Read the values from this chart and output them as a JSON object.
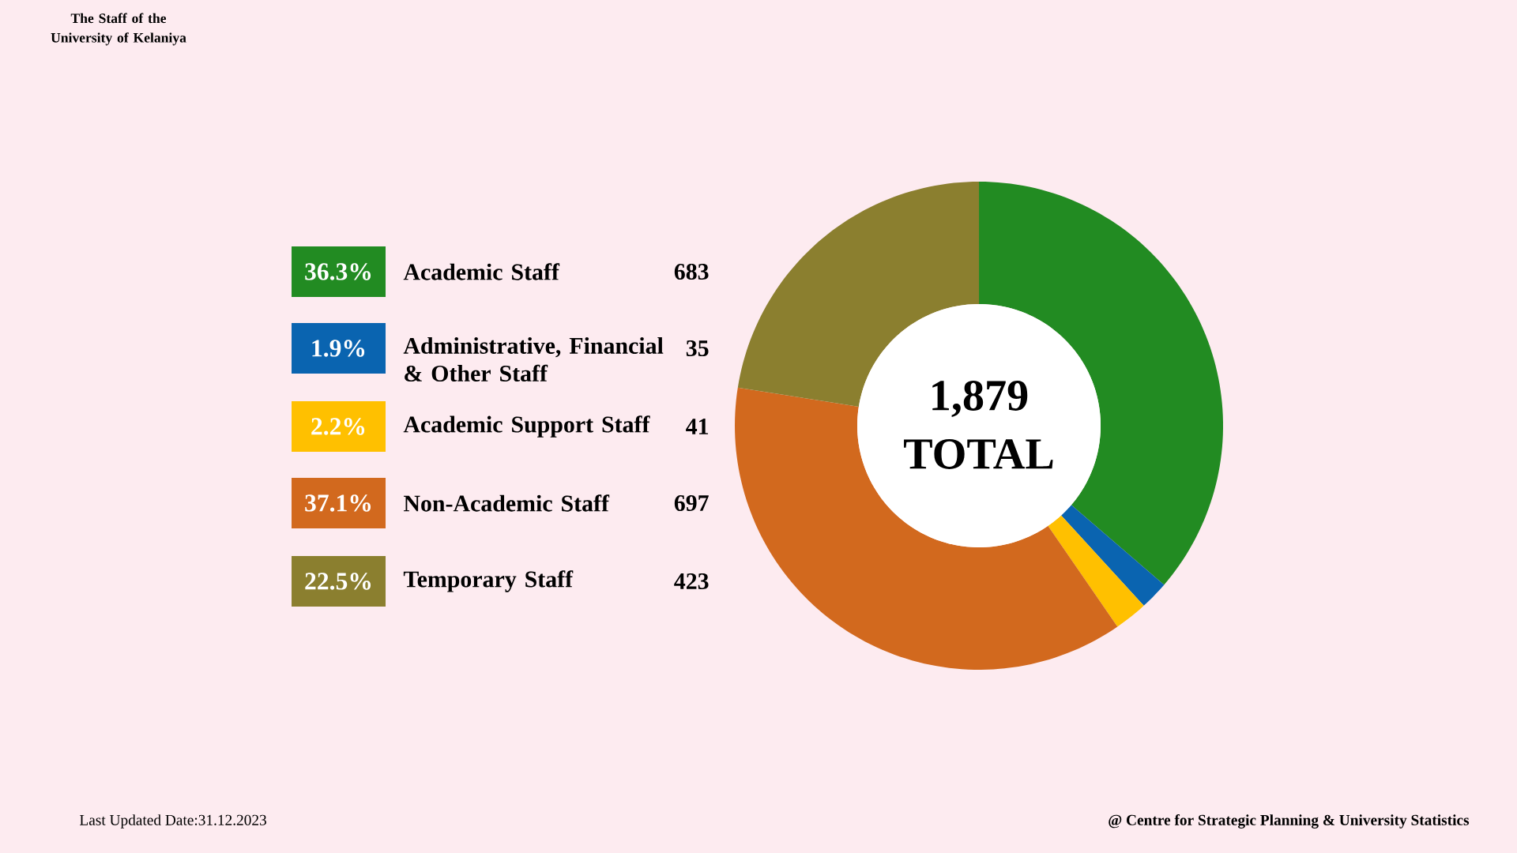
{
  "chart_data": {
    "type": "donut",
    "title": "The Staff of the University of Kelaniya",
    "categories": [
      "Academic Staff",
      "Administrative, Financial & Other Staff",
      "Academic Support Staff",
      "Non-Academic Staff",
      "Temporary Staff"
    ],
    "values": [
      36.3,
      1.9,
      2.2,
      37.1,
      22.5
    ],
    "colors": [
      "#228b22",
      "#0a64b0",
      "#ffc000",
      "#d2691e",
      "#8b7f2f"
    ],
    "value_labels": [
      "36.3%",
      "1.9%",
      "2.2%",
      "37.1%",
      "22.5%"
    ],
    "legend": "left",
    "annotations": [
      "683",
      "35",
      "41",
      "697",
      "423",
      "1,879",
      "TOTAL",
      "Last Updated Date:31.12.2023",
      "@ Centre for Strategic Planning & University Statistics"
    ]
  }
}
